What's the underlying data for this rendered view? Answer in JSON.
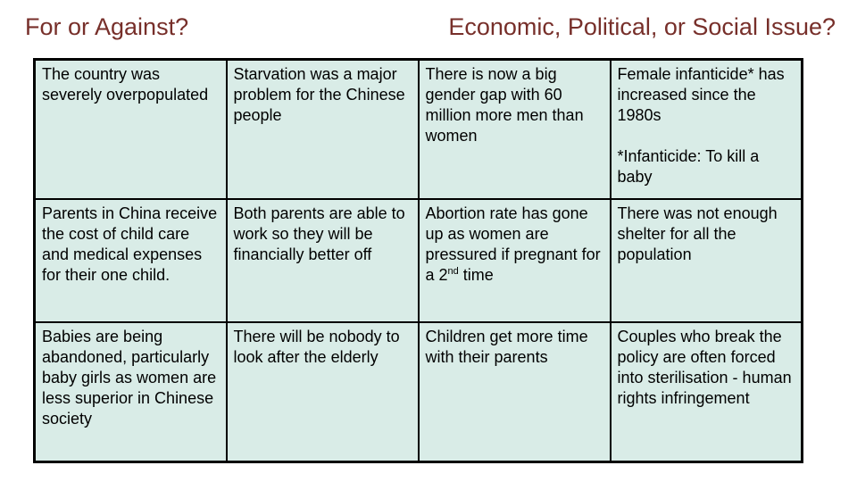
{
  "slide": {
    "title_left": "For or Against?",
    "title_right": "Economic, Political, or Social Issue?",
    "title_color": "#772f2a",
    "background_color": "#ffffff"
  },
  "table": {
    "cell_bg": "#d9ece7",
    "border_color": "#000000",
    "text_color": "#000000",
    "rows": [
      [
        {
          "text": "The country was severely overpopulated"
        },
        {
          "text": "Starvation was a major problem for the Chinese people"
        },
        {
          "text": "There is now a big gender gap with 60 million more men than women"
        },
        {
          "text": "Female infanticide* has increased since the 1980s",
          "note": "*Infanticide: To kill a baby"
        }
      ],
      [
        {
          "text": "Parents in China receive the cost of child care and medical expenses for their one child."
        },
        {
          "text": "Both parents are able to work so they will be financially better off"
        },
        {
          "pre": "Abortion rate has gone up as women are pressured if pregnant for a 2",
          "sup": "nd",
          "post": " time"
        },
        {
          "text": "There was not enough shelter for all the population"
        }
      ],
      [
        {
          "text": "Babies are being abandoned, particularly baby girls as women are less superior in Chinese society"
        },
        {
          "text": "There will be nobody to look after the elderly"
        },
        {
          "text": "Children get more time with their parents"
        },
        {
          "text": "Couples who break the policy are often forced into sterilisation - human rights infringement"
        }
      ]
    ]
  }
}
